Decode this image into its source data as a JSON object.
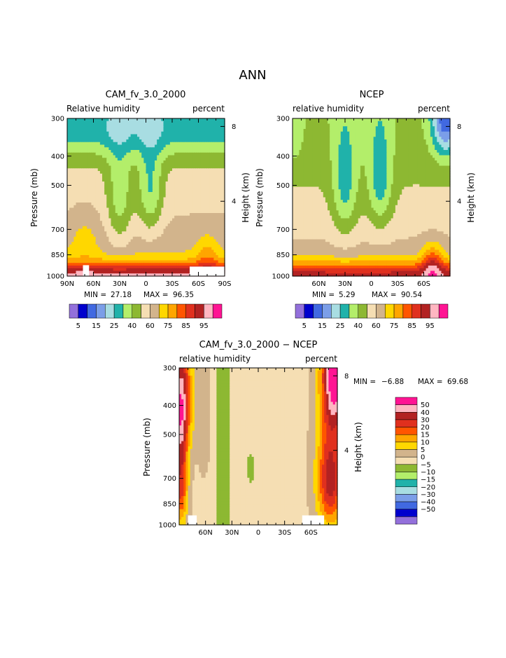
{
  "page": {
    "title": "ANN"
  },
  "colors": {
    "rh": [
      "#9370DB",
      "#0000CD",
      "#4169E1",
      "#7B9EE8",
      "#A8DDE2",
      "#20B2AA",
      "#B3EE6A",
      "#8DB832",
      "#F5DEB3",
      "#D2B48C",
      "#FFD700",
      "#FFA500",
      "#FF5500",
      "#E0301E",
      "#B22222",
      "#FFB6C1",
      "#FF1493"
    ],
    "diff": [
      "#9370DB",
      "#0000CD",
      "#4169E1",
      "#7B9EE8",
      "#A8DDE2",
      "#20B2AA",
      "#B3EE6A",
      "#8DB832",
      "#F5DEB3",
      "#D2B48C",
      "#FFD700",
      "#FFA500",
      "#FF5500",
      "#E0301E",
      "#B22222",
      "#FFB6C1",
      "#FF1493"
    ],
    "missing": "#ffffff"
  },
  "chart_data": [
    {
      "type": "heatmap",
      "title": "CAM_fv_3.0_2000",
      "left_label": "Relative humidity",
      "right_label": "percent",
      "ylabel": "Pressure (mb)",
      "y2label": "Height (km)",
      "y_ticks": [
        "300",
        "400",
        "500",
        "700",
        "850",
        "1000"
      ],
      "y_tick_values": [
        300,
        400,
        500,
        700,
        850,
        1000
      ],
      "y2_ticks": [
        "8",
        "4"
      ],
      "y2_tick_values": [
        8,
        4
      ],
      "x_ticks": [
        "90N",
        "60N",
        "30N",
        "0",
        "30S",
        "60S",
        "90S"
      ],
      "x_tick_values": [
        90,
        60,
        30,
        0,
        -30,
        -60,
        -90
      ],
      "xlim": [
        90,
        -90
      ],
      "ylim": [
        1000,
        300
      ],
      "stats": {
        "min_label": "MIN =",
        "min": "27.18",
        "max_label": "MAX =",
        "max": "96.35"
      },
      "missing": [
        {
          "lat": [
            72,
            65
          ],
          "p": [
            920,
            1000
          ]
        },
        {
          "lat": [
            -50,
            -90
          ],
          "p": [
            930,
            1000
          ]
        }
      ]
    },
    {
      "type": "heatmap",
      "title": "NCEP",
      "left_label": "relative humidity",
      "right_label": "percent",
      "ylabel": "Pressure (mb)",
      "y2label": "Height (km)",
      "y_ticks": [
        "300",
        "400",
        "500",
        "700",
        "850",
        "1000"
      ],
      "y_tick_values": [
        300,
        400,
        500,
        700,
        850,
        1000
      ],
      "y2_ticks": [
        "8",
        "4"
      ],
      "y2_tick_values": [
        8,
        4
      ],
      "x_ticks": [
        "60N",
        "30N",
        "0",
        "30S",
        "60S"
      ],
      "x_tick_values": [
        60,
        30,
        0,
        -30,
        -60
      ],
      "xlim": [
        90,
        -90
      ],
      "ylim": [
        1000,
        300
      ],
      "stats": {
        "min_label": "MIN =",
        "min": "5.29",
        "max_label": "MAX =",
        "max": "90.54"
      },
      "missing": []
    },
    {
      "type": "heatmap",
      "title": "CAM_fv_3.0_2000 − NCEP",
      "left_label": "relative humidity",
      "right_label": "percent",
      "ylabel": "Pressure (mb)",
      "y2label": "Height (km)",
      "y_ticks": [
        "300",
        "400",
        "500",
        "700",
        "850",
        "1000"
      ],
      "y_tick_values": [
        300,
        400,
        500,
        700,
        850,
        1000
      ],
      "y2_ticks": [
        "8",
        "4"
      ],
      "y2_tick_values": [
        8,
        4
      ],
      "x_ticks": [
        "60N",
        "30N",
        "0",
        "30S",
        "60S"
      ],
      "x_tick_values": [
        60,
        30,
        0,
        -30,
        -60
      ],
      "xlim": [
        90,
        -90
      ],
      "ylim": [
        1000,
        300
      ],
      "stats": {
        "min_label": "MIN =",
        "min": "−6.88",
        "max_label": "MAX =",
        "max": "69.68"
      },
      "missing": [
        {
          "lat": [
            80,
            70
          ],
          "p": [
            930,
            1000
          ]
        },
        {
          "lat": [
            -50,
            -75
          ],
          "p": [
            930,
            1000
          ]
        }
      ]
    }
  ],
  "colorbars": {
    "rh": {
      "orientation": "horizontal",
      "labels": [
        "5",
        "15",
        "25",
        "40",
        "60",
        "75",
        "85",
        "95"
      ]
    },
    "diff": {
      "orientation": "vertical",
      "labels": [
        "50",
        "40",
        "30",
        "20",
        "15",
        "10",
        "5",
        "0",
        "−5",
        "−10",
        "−15",
        "−20",
        "−30",
        "−40",
        "−50"
      ]
    }
  }
}
